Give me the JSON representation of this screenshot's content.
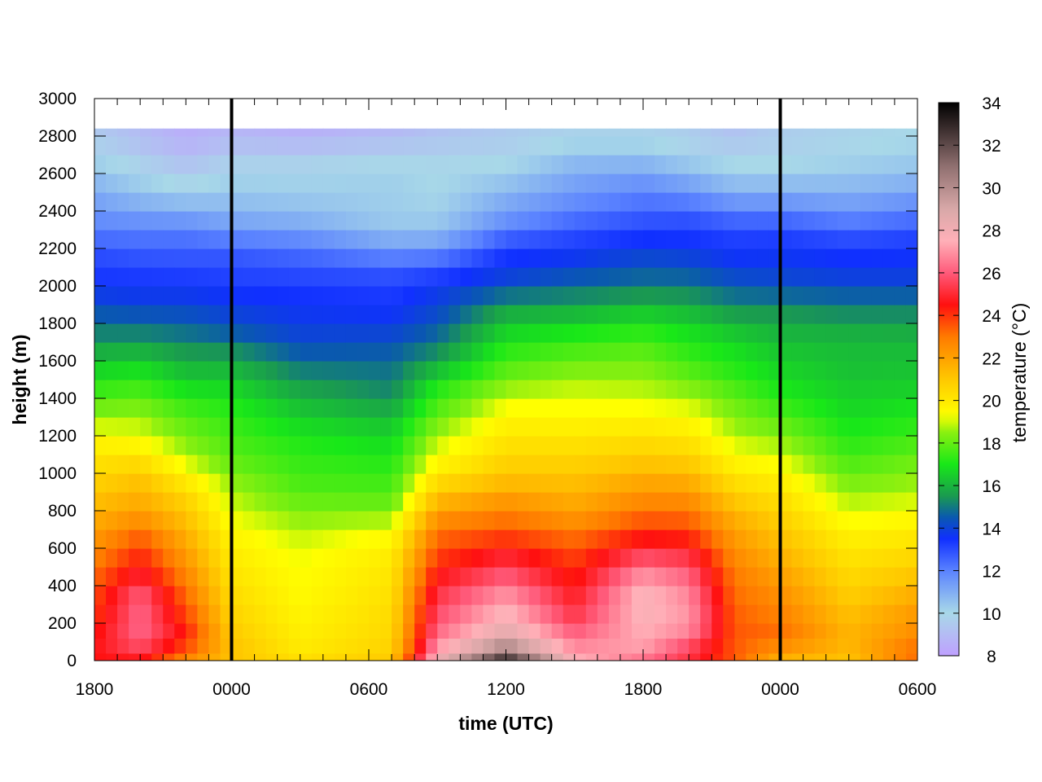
{
  "chart_data": {
    "type": "heatmap",
    "title": "",
    "xlabel": "time (UTC)",
    "ylabel": "height (m)",
    "colorbar_label": "temperature (°C)",
    "x_tick_labels": [
      "1800",
      "0000",
      "0600",
      "1200",
      "1800",
      "0000",
      "0600"
    ],
    "x_range_hours": [
      0,
      36
    ],
    "y_ticks": [
      0,
      200,
      400,
      600,
      800,
      1000,
      1200,
      1400,
      1600,
      1800,
      2000,
      2200,
      2400,
      2600,
      2800,
      3000
    ],
    "y_range_m": [
      0,
      3000
    ],
    "colorbar_ticks": [
      8,
      10,
      12,
      14,
      16,
      18,
      20,
      22,
      24,
      26,
      28,
      30,
      32,
      34
    ],
    "colorbar_range_c": [
      8,
      34
    ],
    "data_top_m": 2840,
    "vertical_markers_hour": [
      6,
      30
    ],
    "colormap": [
      {
        "t": 8,
        "color": "#bfa0ff"
      },
      {
        "t": 10,
        "color": "#a8d8e8"
      },
      {
        "t": 12,
        "color": "#5a82ff"
      },
      {
        "t": 13.5,
        "color": "#1030ff"
      },
      {
        "t": 14.5,
        "color": "#0a58b0"
      },
      {
        "t": 15.5,
        "color": "#1a9a50"
      },
      {
        "t": 17,
        "color": "#18e818"
      },
      {
        "t": 18.5,
        "color": "#8af010"
      },
      {
        "t": 19.3,
        "color": "#ffff00"
      },
      {
        "t": 21,
        "color": "#ffc800"
      },
      {
        "t": 23,
        "color": "#ff7a00"
      },
      {
        "t": 24.5,
        "color": "#ff1010"
      },
      {
        "t": 26,
        "color": "#ff5a7a"
      },
      {
        "t": 27.5,
        "color": "#ffb0b8"
      },
      {
        "t": 29,
        "color": "#d8a8a8"
      },
      {
        "t": 31,
        "color": "#907070"
      },
      {
        "t": 34,
        "color": "#000000"
      }
    ],
    "height_levels_m": [
      0,
      40,
      120,
      200,
      300,
      400,
      500,
      600,
      700,
      800,
      900,
      1000,
      1100,
      1200,
      1300,
      1400,
      1500,
      1600,
      1700,
      1800,
      1900,
      2000,
      2100,
      2200,
      2300,
      2400,
      2500,
      2600,
      2700,
      2800
    ],
    "keyframes": [
      {
        "hour": 0,
        "temps": [
          24.5,
          24.5,
          24.5,
          24.0,
          23.8,
          23.5,
          23.0,
          22.5,
          22.0,
          21.5,
          21.0,
          20.5,
          20.0,
          19.5,
          18.5,
          17.8,
          17.0,
          16.3,
          15.5,
          14.8,
          14.2,
          13.5,
          13.2,
          12.8,
          12.0,
          11.5,
          11.0,
          10.5,
          10.0,
          9.5
        ]
      },
      {
        "hour": 2,
        "temps": [
          24.5,
          25.0,
          26.5,
          26.0,
          26.5,
          25.5,
          24.5,
          24.0,
          23.0,
          22.0,
          21.5,
          21.0,
          20.0,
          19.2,
          18.6,
          18.0,
          17.2,
          16.5,
          15.5,
          14.8,
          14.0,
          13.5,
          13.1,
          12.6,
          12.0,
          11.2,
          10.5,
          10.0,
          9.5,
          9.0
        ]
      },
      {
        "hour": 4,
        "temps": [
          22.5,
          23.0,
          24.5,
          24.0,
          23.5,
          23.0,
          22.5,
          22.0,
          21.5,
          21.0,
          20.5,
          19.5,
          18.8,
          18.2,
          17.8,
          17.2,
          16.5,
          15.8,
          15.2,
          14.6,
          14.0,
          13.5,
          13.0,
          12.6,
          12.0,
          11.0,
          10.2,
          9.5,
          9.0,
          8.5
        ]
      },
      {
        "hour": 6,
        "temps": [
          21.0,
          21.2,
          21.0,
          20.8,
          20.5,
          20.3,
          20.0,
          19.8,
          19.5,
          19.0,
          18.8,
          18.3,
          17.8,
          17.6,
          17.3,
          17.0,
          16.4,
          15.8,
          15.0,
          14.2,
          13.8,
          13.3,
          13.0,
          12.6,
          11.5,
          10.8,
          10.4,
          10.0,
          9.5,
          8.8
        ]
      },
      {
        "hour": 9,
        "temps": [
          20.5,
          20.0,
          19.8,
          19.7,
          19.5,
          19.4,
          19.3,
          19.1,
          18.8,
          18.3,
          17.8,
          17.5,
          17.3,
          17.0,
          16.5,
          16.0,
          15.4,
          14.8,
          14.2,
          13.8,
          13.6,
          13.3,
          12.8,
          12.3,
          11.3,
          10.6,
          10.3,
          10.0,
          9.5,
          8.6
        ]
      },
      {
        "hour": 13,
        "temps": [
          21.0,
          20.8,
          20.5,
          20.5,
          20.3,
          20.2,
          20.0,
          19.8,
          19.2,
          18.3,
          17.7,
          17.4,
          17.0,
          16.6,
          16.1,
          15.4,
          15.0,
          14.8,
          14.3,
          13.8,
          13.4,
          13.2,
          12.6,
          11.5,
          10.5,
          10.2,
          10.3,
          10.1,
          9.8,
          8.9
        ]
      },
      {
        "hour": 15,
        "temps": [
          28.5,
          27.5,
          26.5,
          26.0,
          25.5,
          25.0,
          24.2,
          23.6,
          23.0,
          22.0,
          21.0,
          20.0,
          19.2,
          18.8,
          18.0,
          17.5,
          16.8,
          15.6,
          15.0,
          14.4,
          14.0,
          13.6,
          12.8,
          11.6,
          10.5,
          10.2,
          10.0,
          10.0,
          9.8,
          9.2
        ]
      },
      {
        "hour": 18,
        "temps": [
          34.0,
          31.0,
          29.0,
          28.0,
          27.5,
          26.5,
          25.5,
          24.5,
          23.5,
          22.8,
          21.8,
          21.0,
          20.5,
          20.0,
          19.6,
          19.0,
          18.2,
          17.6,
          17.0,
          16.3,
          15.5,
          14.3,
          13.6,
          13.3,
          12.0,
          11.3,
          10.8,
          10.2,
          9.8,
          9.5
        ]
      },
      {
        "hour": 21,
        "temps": [
          28.0,
          27.0,
          26.5,
          25.5,
          25.0,
          24.5,
          24.0,
          23.6,
          22.8,
          22.0,
          21.5,
          21.0,
          20.5,
          20.0,
          19.5,
          19.1,
          18.7,
          18.0,
          17.4,
          16.6,
          15.6,
          14.8,
          14.0,
          13.4,
          12.8,
          12.0,
          11.5,
          11.0,
          10.5,
          9.8
        ]
      },
      {
        "hour": 24,
        "temps": [
          26.0,
          27.0,
          27.5,
          27.5,
          28.0,
          27.5,
          26.5,
          25.0,
          24.0,
          23.0,
          22.3,
          21.5,
          20.8,
          20.2,
          19.6,
          19.0,
          18.6,
          18.2,
          17.6,
          17.0,
          16.0,
          15.0,
          14.4,
          13.8,
          13.2,
          12.5,
          12.0,
          11.2,
          10.5,
          9.8
        ]
      },
      {
        "hour": 26,
        "temps": [
          25.5,
          25.0,
          26.5,
          27.0,
          27.0,
          26.5,
          25.8,
          24.8,
          23.8,
          23.0,
          22.2,
          21.4,
          20.6,
          20.0,
          19.4,
          18.8,
          18.1,
          17.5,
          17.1,
          16.6,
          15.8,
          15.0,
          14.3,
          13.7,
          13.2,
          12.6,
          11.6,
          10.8,
          10.0,
          9.6
        ]
      },
      {
        "hour": 28,
        "temps": [
          23.5,
          23.5,
          23.5,
          23.5,
          23.3,
          23.1,
          22.8,
          22.4,
          22.0,
          21.4,
          20.7,
          20.0,
          19.4,
          18.8,
          18.4,
          18.0,
          17.4,
          17.0,
          16.7,
          16.0,
          15.2,
          14.5,
          13.8,
          13.4,
          13.0,
          12.0,
          11.0,
          10.2,
          9.8,
          9.2
        ]
      },
      {
        "hour": 30,
        "temps": [
          21.5,
          21.8,
          23.3,
          23.0,
          22.6,
          22.3,
          21.8,
          21.4,
          21.0,
          20.6,
          20.1,
          19.6,
          19.0,
          18.4,
          17.8,
          17.2,
          16.8,
          16.5,
          16.2,
          15.8,
          15.2,
          14.3,
          13.8,
          13.5,
          13.0,
          12.0,
          11.0,
          10.2,
          9.8,
          9.6
        ]
      },
      {
        "hour": 33,
        "temps": [
          21.0,
          21.3,
          21.5,
          21.4,
          21.0,
          20.7,
          20.3,
          20.0,
          19.6,
          19.0,
          18.6,
          18.0,
          17.5,
          17.1,
          16.8,
          16.5,
          16.4,
          16.1,
          16.2,
          15.6,
          15.0,
          14.2,
          13.6,
          13.4,
          12.5,
          11.6,
          10.9,
          10.4,
          10.0,
          9.8
        ]
      },
      {
        "hour": 36,
        "temps": [
          23.0,
          23.5,
          22.6,
          22.4,
          22.0,
          21.4,
          20.8,
          20.3,
          19.8,
          19.3,
          18.8,
          18.4,
          18.0,
          17.5,
          17.1,
          16.7,
          16.4,
          16.2,
          16.1,
          15.6,
          15.0,
          14.2,
          13.6,
          13.5,
          12.8,
          12.0,
          11.2,
          10.6,
          10.2,
          10.0
        ]
      }
    ]
  }
}
